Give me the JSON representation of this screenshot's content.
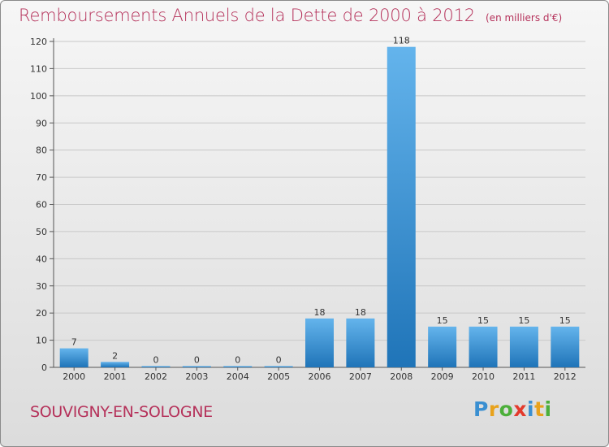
{
  "header": {
    "title": "Remboursements Annuels de la Dette de 2000 à 2012",
    "unit": "(en milliers d'€)"
  },
  "footer": {
    "commune": "SOUVIGNY-EN-SOLOGNE",
    "logo_letters": [
      {
        "char": "P",
        "color": "#3a8fd1"
      },
      {
        "char": "r",
        "color": "#e8a21c"
      },
      {
        "char": "o",
        "color": "#4caf3a"
      },
      {
        "char": "x",
        "color": "#e33a2c"
      },
      {
        "char": "i",
        "color": "#3a8fd1"
      },
      {
        "char": "t",
        "color": "#e8a21c"
      },
      {
        "char": "i",
        "color": "#4caf3a"
      }
    ]
  },
  "colors": {
    "title": "#b5315a",
    "bar_top": "#64b4ec",
    "bar_bottom": "#1f74b8",
    "grid": "#c8c8c8",
    "axis": "#555555"
  },
  "chart_data": {
    "type": "bar",
    "categories": [
      "2000",
      "2001",
      "2002",
      "2003",
      "2004",
      "2005",
      "2006",
      "2007",
      "2008",
      "2009",
      "2010",
      "2011",
      "2012"
    ],
    "values": [
      7,
      2,
      0,
      0,
      0,
      0,
      18,
      18,
      118,
      15,
      15,
      15,
      15
    ],
    "data_labels": [
      "7",
      "2",
      "0",
      "0",
      "0",
      "0",
      "18",
      "18",
      "118",
      "15",
      "15",
      "15",
      "15"
    ],
    "ylim": [
      0,
      120
    ],
    "yticks": [
      0,
      10,
      20,
      30,
      40,
      50,
      60,
      70,
      80,
      90,
      100,
      110,
      120
    ],
    "grid": true
  }
}
